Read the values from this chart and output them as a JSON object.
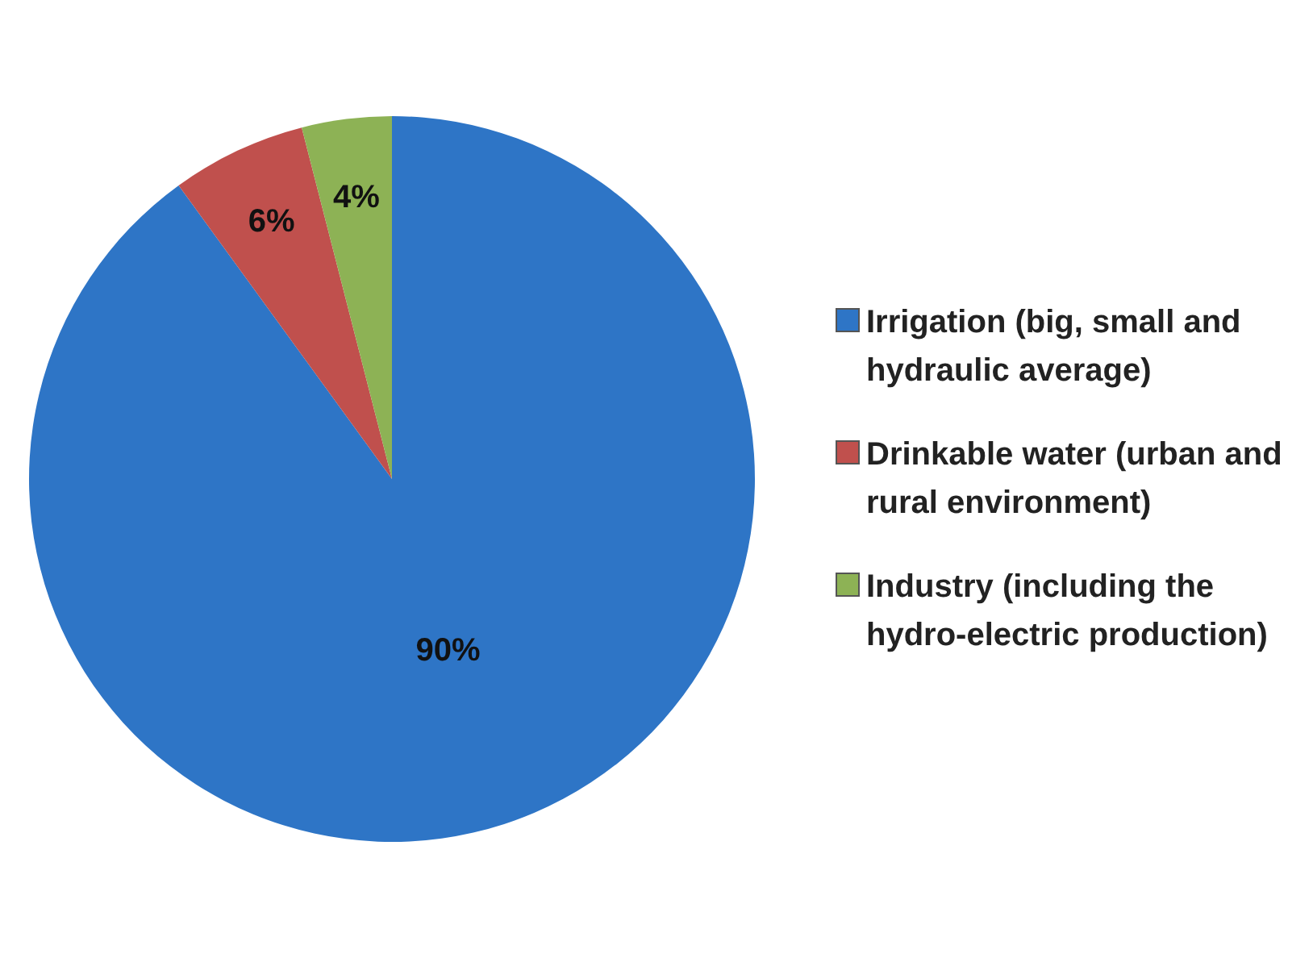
{
  "chart_data": {
    "type": "pie",
    "categories": [
      "Irrigation (big, small and hydraulic average)",
      "Drinkable water (urban and rural environment)",
      "Industry (including the hydro-electric production)"
    ],
    "values": [
      90,
      6,
      4
    ],
    "colors": [
      "#2e75c6",
      "#c0504d",
      "#8db255"
    ],
    "value_labels": [
      "90%",
      "6%",
      "4%"
    ],
    "legend": "right"
  }
}
